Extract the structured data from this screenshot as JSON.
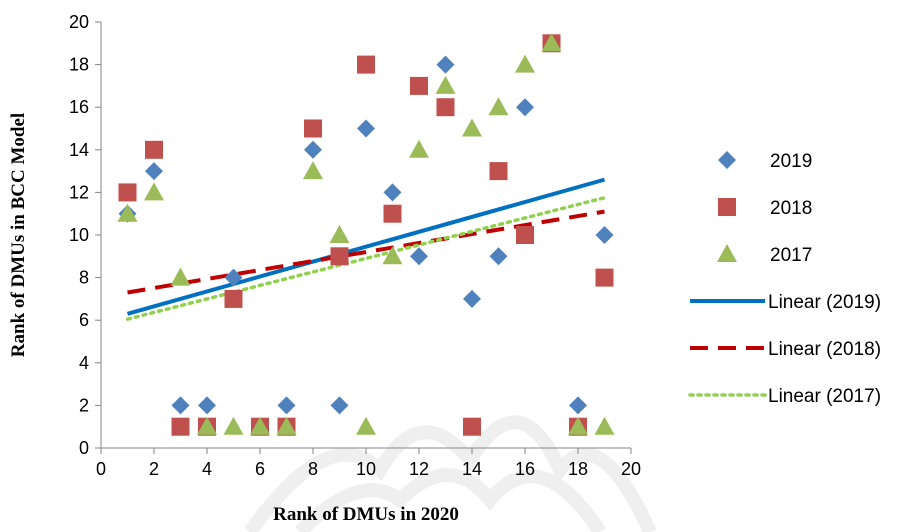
{
  "chart_data": {
    "type": "scatter",
    "title": "",
    "xlabel": "Rank of DMUs in 2020",
    "ylabel": "Rank of DMUs in BCC Model",
    "xlim": [
      0,
      20
    ],
    "ylim": [
      0,
      20
    ],
    "xticks": [
      0,
      2,
      4,
      6,
      8,
      10,
      12,
      14,
      16,
      18,
      20
    ],
    "yticks": [
      0,
      2,
      4,
      6,
      8,
      10,
      12,
      14,
      16,
      18,
      20
    ],
    "grid": false,
    "legend_position": "right",
    "series": [
      {
        "name": "2019",
        "marker": "diamond",
        "color": "#4F81BD",
        "points": [
          [
            1,
            11
          ],
          [
            2,
            13
          ],
          [
            3,
            2
          ],
          [
            4,
            2
          ],
          [
            5,
            8
          ],
          [
            6,
            1
          ],
          [
            7,
            2
          ],
          [
            8,
            14
          ],
          [
            9,
            2
          ],
          [
            10,
            15
          ],
          [
            11,
            12
          ],
          [
            12,
            9
          ],
          [
            13,
            18
          ],
          [
            14,
            7
          ],
          [
            15,
            9
          ],
          [
            16,
            16
          ],
          [
            17,
            19
          ],
          [
            18,
            2
          ],
          [
            19,
            10
          ]
        ]
      },
      {
        "name": "2018",
        "marker": "square",
        "color": "#C0504D",
        "points": [
          [
            1,
            12
          ],
          [
            2,
            14
          ],
          [
            3,
            1
          ],
          [
            4,
            1
          ],
          [
            5,
            7
          ],
          [
            6,
            1
          ],
          [
            7,
            1
          ],
          [
            8,
            15
          ],
          [
            9,
            9
          ],
          [
            10,
            18
          ],
          [
            11,
            11
          ],
          [
            12,
            17
          ],
          [
            13,
            16
          ],
          [
            14,
            1
          ],
          [
            15,
            13
          ],
          [
            16,
            10
          ],
          [
            17,
            19
          ],
          [
            18,
            1
          ],
          [
            19,
            8
          ]
        ]
      },
      {
        "name": "2017",
        "marker": "triangle",
        "color": "#9BBB59",
        "points": [
          [
            1,
            11
          ],
          [
            2,
            12
          ],
          [
            3,
            8
          ],
          [
            4,
            1
          ],
          [
            5,
            1
          ],
          [
            6,
            1
          ],
          [
            7,
            1
          ],
          [
            8,
            13
          ],
          [
            9,
            10
          ],
          [
            10,
            1
          ],
          [
            11,
            9
          ],
          [
            12,
            14
          ],
          [
            13,
            17
          ],
          [
            14,
            15
          ],
          [
            15,
            16
          ],
          [
            16,
            18
          ],
          [
            17,
            19
          ],
          [
            18,
            1
          ],
          [
            19,
            1
          ]
        ]
      }
    ],
    "trendlines": [
      {
        "name": "Linear (2019)",
        "style": "solid",
        "color": "#0070C0",
        "x": [
          1,
          19
        ],
        "y": [
          6.3,
          12.6
        ]
      },
      {
        "name": "Linear (2018)",
        "style": "dashed",
        "color": "#C00000",
        "x": [
          1,
          19
        ],
        "y": [
          7.3,
          11.1
        ]
      },
      {
        "name": "Linear (2017)",
        "style": "dotted",
        "color": "#92D050",
        "x": [
          1,
          19
        ],
        "y": [
          6.05,
          11.75
        ]
      }
    ]
  }
}
